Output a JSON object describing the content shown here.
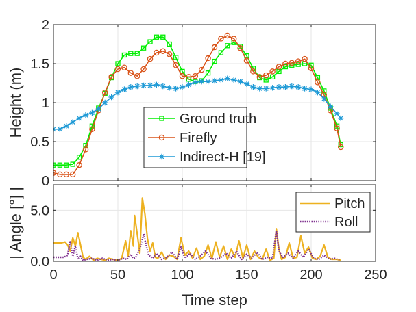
{
  "chart_data": [
    {
      "type": "line",
      "title": "",
      "xlabel": "",
      "ylabel": "Height (m)",
      "xlim": [
        0,
        250
      ],
      "ylim": [
        0,
        2
      ],
      "xticks": [
        0,
        50,
        100,
        150,
        200,
        250
      ],
      "yticks": [
        0,
        0.5,
        1,
        1.5,
        2
      ],
      "ytick_labels": [
        "0",
        "0.5",
        "1",
        "1.5",
        "2"
      ],
      "grid": true,
      "legend_placement": "bottom-center",
      "series": [
        {
          "name": "Ground truth",
          "color": "#00ee00",
          "marker": "square",
          "x": [
            0,
            5,
            10,
            15,
            20,
            25,
            30,
            35,
            40,
            45,
            50,
            55,
            60,
            65,
            70,
            75,
            80,
            85,
            90,
            95,
            100,
            105,
            110,
            115,
            120,
            125,
            130,
            135,
            140,
            145,
            150,
            155,
            160,
            165,
            170,
            175,
            180,
            185,
            190,
            195,
            200,
            205,
            210,
            215,
            220,
            223
          ],
          "y": [
            0.2,
            0.2,
            0.2,
            0.21,
            0.3,
            0.45,
            0.7,
            0.93,
            1.12,
            1.32,
            1.5,
            1.61,
            1.63,
            1.63,
            1.7,
            1.78,
            1.84,
            1.84,
            1.75,
            1.58,
            1.4,
            1.3,
            1.27,
            1.28,
            1.38,
            1.53,
            1.64,
            1.73,
            1.77,
            1.72,
            1.6,
            1.44,
            1.32,
            1.29,
            1.33,
            1.4,
            1.46,
            1.48,
            1.49,
            1.5,
            1.48,
            1.32,
            1.15,
            0.93,
            0.7,
            0.46
          ]
        },
        {
          "name": "Firefly",
          "color": "#d95319",
          "marker": "circle",
          "x": [
            0,
            5,
            10,
            15,
            20,
            25,
            30,
            35,
            40,
            45,
            50,
            55,
            60,
            65,
            70,
            75,
            80,
            85,
            90,
            95,
            100,
            105,
            110,
            115,
            120,
            125,
            130,
            135,
            140,
            145,
            150,
            155,
            160,
            165,
            170,
            175,
            180,
            185,
            190,
            195,
            200,
            205,
            210,
            215,
            220,
            223
          ],
          "y": [
            0.1,
            0.08,
            0.08,
            0.08,
            0.2,
            0.4,
            0.66,
            0.9,
            1.13,
            1.33,
            1.43,
            1.45,
            1.38,
            1.34,
            1.43,
            1.56,
            1.64,
            1.66,
            1.62,
            1.48,
            1.34,
            1.33,
            1.34,
            1.42,
            1.57,
            1.71,
            1.82,
            1.86,
            1.82,
            1.7,
            1.54,
            1.4,
            1.33,
            1.35,
            1.4,
            1.46,
            1.5,
            1.51,
            1.53,
            1.56,
            1.44,
            1.26,
            1.1,
            0.9,
            0.67,
            0.43
          ]
        },
        {
          "name": "Indirect-H [19]",
          "color": "#1f9ad6",
          "marker": "asterisk",
          "x": [
            0,
            5,
            10,
            15,
            20,
            25,
            30,
            35,
            40,
            45,
            50,
            55,
            60,
            65,
            70,
            75,
            80,
            85,
            90,
            95,
            100,
            105,
            110,
            115,
            120,
            125,
            130,
            135,
            140,
            145,
            150,
            155,
            160,
            165,
            170,
            175,
            180,
            185,
            190,
            195,
            200,
            205,
            210,
            215,
            220,
            223
          ],
          "y": [
            0.66,
            0.66,
            0.7,
            0.75,
            0.8,
            0.84,
            0.87,
            0.92,
            1.0,
            1.07,
            1.13,
            1.17,
            1.2,
            1.21,
            1.22,
            1.22,
            1.23,
            1.21,
            1.19,
            1.18,
            1.2,
            1.23,
            1.26,
            1.27,
            1.27,
            1.28,
            1.29,
            1.31,
            1.29,
            1.27,
            1.24,
            1.2,
            1.18,
            1.18,
            1.19,
            1.2,
            1.2,
            1.21,
            1.2,
            1.18,
            1.17,
            1.13,
            1.05,
            0.95,
            0.86,
            0.8
          ]
        }
      ]
    },
    {
      "type": "line",
      "title": "",
      "xlabel": "Time step",
      "ylabel": "| Angle [°] |",
      "xlim": [
        0,
        250
      ],
      "ylim": [
        0,
        7.5
      ],
      "xticks": [
        0,
        50,
        100,
        150,
        200,
        250
      ],
      "xtick_labels": [
        "0",
        "50",
        "100",
        "150",
        "200",
        "250"
      ],
      "yticks": [
        0,
        5
      ],
      "ytick_labels": [
        "0.0",
        "5.0"
      ],
      "grid": true,
      "legend_placement": "top-right",
      "series": [
        {
          "name": "Pitch",
          "color": "#edb120",
          "style": "solid",
          "x": [
            0,
            3,
            6,
            9,
            11,
            13,
            15,
            17,
            19,
            21,
            23,
            25,
            28,
            31,
            34,
            37,
            40,
            43,
            46,
            50,
            53,
            56,
            58,
            60,
            62,
            63,
            65,
            67,
            69,
            71,
            73,
            75,
            77,
            79,
            81,
            84,
            87,
            90,
            93,
            96,
            99,
            102,
            105,
            108,
            111,
            114,
            117,
            120,
            123,
            126,
            129,
            132,
            135,
            138,
            141,
            144,
            147,
            150,
            153,
            156,
            159,
            162,
            165,
            168,
            171,
            173,
            175,
            177,
            180,
            183,
            186,
            189,
            192,
            195,
            198,
            201,
            204,
            207,
            210,
            213,
            216,
            220,
            223
          ],
          "y": [
            1.8,
            1.8,
            1.8,
            1.9,
            1.6,
            1.0,
            2.3,
            1.5,
            2.8,
            1.6,
            0.4,
            0.2,
            0.5,
            0.1,
            0.3,
            0.2,
            0.1,
            0.3,
            0.2,
            0.1,
            0.3,
            2.0,
            0.5,
            3.0,
            1.5,
            4.5,
            2.7,
            0.8,
            6.2,
            4.6,
            2.2,
            1.0,
            1.8,
            0.4,
            0.3,
            0.9,
            0.2,
            0.6,
            0.5,
            0.2,
            2.3,
            0.6,
            1.0,
            0.3,
            1.3,
            0.2,
            0.5,
            1.6,
            0.3,
            1.9,
            0.4,
            1.5,
            0.2,
            1.2,
            0.4,
            2.0,
            0.3,
            1.6,
            0.2,
            1.0,
            0.4,
            0.2,
            1.2,
            0.1,
            0.3,
            3.2,
            1.2,
            0.2,
            0.4,
            1.8,
            0.3,
            0.4,
            2.5,
            0.8,
            1.4,
            0.3,
            0.2,
            0.5,
            1.6,
            0.4,
            0.2,
            0.2,
            0.1
          ]
        },
        {
          "name": "Roll",
          "color": "#7e2f8e",
          "style": "dotted",
          "x": [
            0,
            4,
            8,
            11,
            13,
            15,
            17,
            19,
            21,
            23,
            26,
            30,
            34,
            38,
            42,
            46,
            50,
            54,
            57,
            60,
            62,
            64,
            66,
            68,
            70,
            72,
            74,
            77,
            80,
            84,
            88,
            92,
            96,
            99,
            102,
            106,
            110,
            114,
            118,
            122,
            126,
            130,
            134,
            138,
            142,
            146,
            150,
            154,
            158,
            162,
            166,
            170,
            173,
            175,
            178,
            182,
            186,
            190,
            194,
            198,
            202,
            206,
            210,
            214,
            218,
            223
          ],
          "y": [
            0.4,
            0.4,
            0.4,
            0.6,
            2.0,
            0.5,
            1.5,
            0.2,
            0.5,
            0.1,
            0.2,
            0.3,
            0.1,
            0.3,
            0.1,
            0.2,
            0.1,
            0.3,
            0.2,
            0.7,
            0.3,
            0.4,
            1.0,
            1.6,
            2.7,
            1.5,
            0.6,
            0.3,
            0.8,
            0.2,
            0.4,
            0.9,
            0.2,
            1.4,
            0.3,
            0.8,
            0.2,
            0.5,
            1.0,
            0.3,
            0.2,
            0.4,
            0.8,
            0.3,
            1.0,
            0.2,
            0.7,
            0.3,
            0.9,
            0.2,
            0.4,
            0.3,
            3.0,
            1.0,
            0.4,
            0.8,
            0.3,
            1.0,
            0.4,
            1.2,
            0.3,
            0.2,
            0.6,
            0.2,
            0.3,
            0.1
          ]
        }
      ]
    }
  ]
}
